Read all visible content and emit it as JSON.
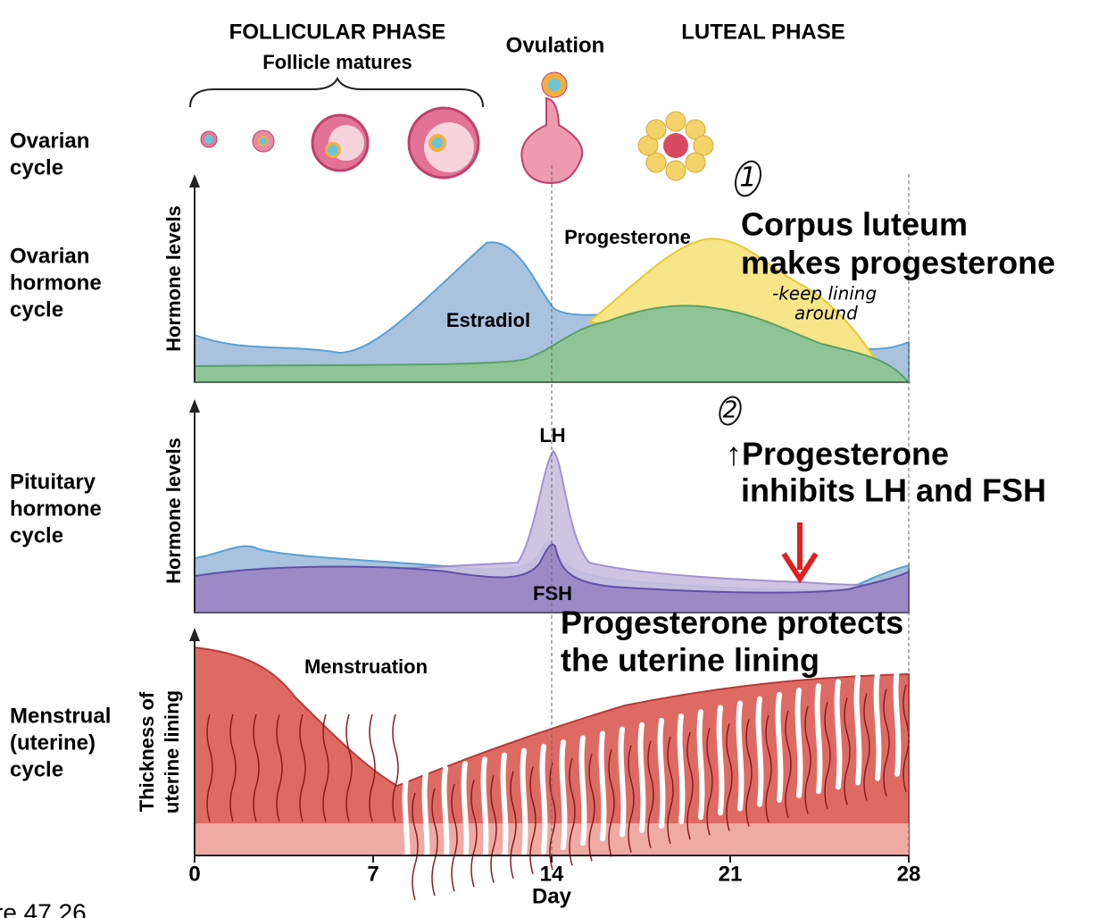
{
  "phases": {
    "follicular": "FOLLICULAR PHASE",
    "follicle_matures": "Follicle matures",
    "ovulation": "Ovulation",
    "luteal": "LUTEAL PHASE"
  },
  "rows": {
    "ovarian_cycle": [
      "Ovarian",
      "cycle"
    ],
    "ovarian_hormone_cycle": [
      "Ovarian",
      "hormone",
      "cycle"
    ],
    "pituitary_hormone_cycle": [
      "Pituitary",
      "hormone",
      "cycle"
    ],
    "menstrual_cycle": [
      "Menstrual",
      "(uterine)",
      "cycle"
    ]
  },
  "panels": {
    "ovarian_hormone": {
      "y_label": "Hormone levels",
      "progesterone": "Progesterone",
      "estradiol": "Estradiol"
    },
    "pituitary_hormone": {
      "y_label": "Hormone levels",
      "lh": "LH",
      "fsh": "FSH"
    },
    "uterine": {
      "y_label": [
        "Thickness of",
        "uterine lining"
      ],
      "menstruation": "Menstruation"
    }
  },
  "day_axis": {
    "ticks": [
      0,
      7,
      14,
      21,
      28
    ],
    "label": "Day"
  },
  "annotations": {
    "note1_mark": "1",
    "note1": [
      "Corpus luteum",
      "makes progesterone"
    ],
    "note1_hand": [
      "-keep lining",
      "around"
    ],
    "note2_mark": "2",
    "note2": [
      "↑Progesterone",
      "inhibits LH and FSH"
    ],
    "note3": [
      "Progesterone protects",
      "the uterine lining"
    ]
  },
  "caption": "re 47.26"
}
